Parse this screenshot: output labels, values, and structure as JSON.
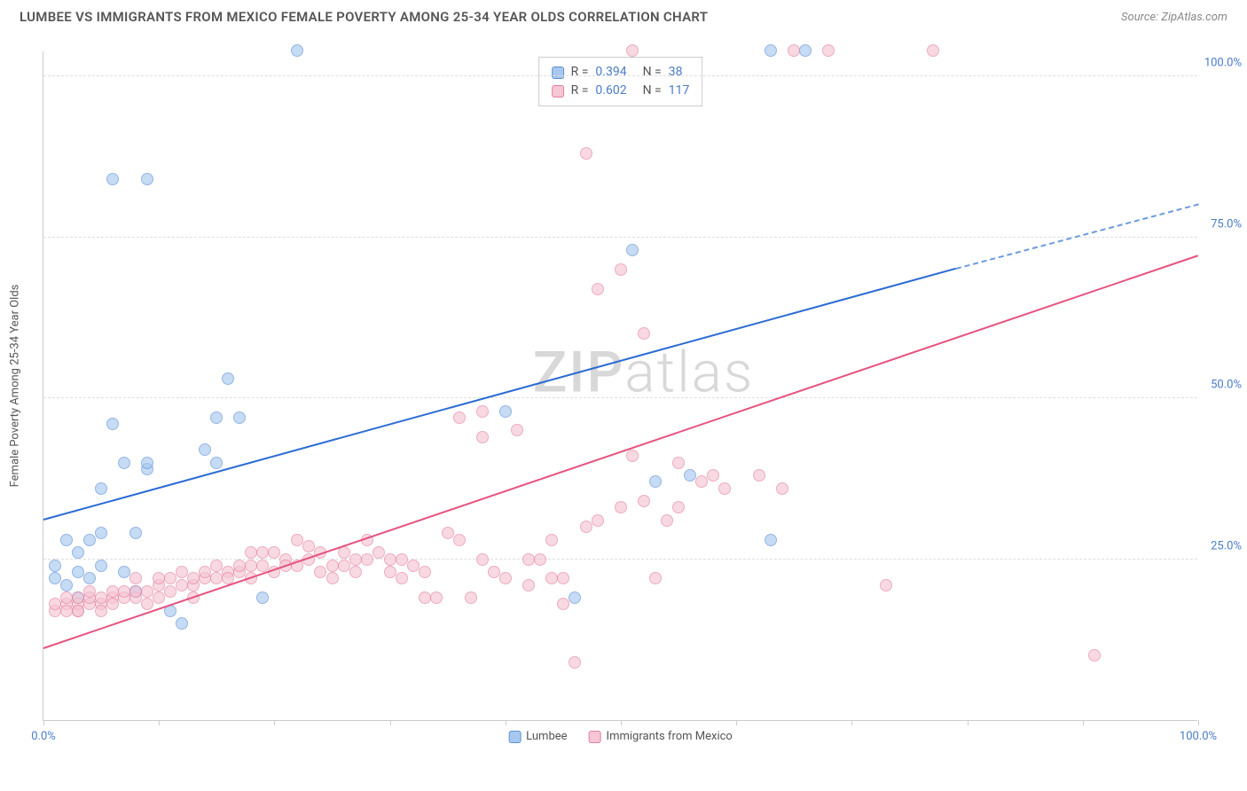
{
  "header": {
    "title": "LUMBEE VS IMMIGRANTS FROM MEXICO FEMALE POVERTY AMONG 25-34 YEAR OLDS CORRELATION CHART",
    "source": "Source: ZipAtlas.com"
  },
  "chart": {
    "type": "scatter",
    "y_label": "Female Poverty Among 25-34 Year Olds",
    "xlim": [
      0,
      100
    ],
    "ylim": [
      0,
      104
    ],
    "x_ticks": [
      0,
      10,
      20,
      30,
      40,
      50,
      60,
      70,
      80,
      90,
      100
    ],
    "x_tick_labels": {
      "0": "0.0%",
      "100": "100.0%"
    },
    "y_ticks": [
      25,
      50,
      75,
      100
    ],
    "y_tick_labels": {
      "25": "25.0%",
      "50": "50.0%",
      "75": "75.0%",
      "100": "100.0%"
    },
    "background_color": "#ffffff",
    "grid_color": "#dddddd",
    "axis_color": "#cccccc",
    "tick_label_color": "#4a7bc8",
    "marker_size": 14,
    "marker_opacity": 0.65,
    "watermark": "ZIPatlas",
    "series": [
      {
        "name": "Lumbee",
        "color_fill": "#a8c8ef",
        "color_stroke": "#5b8fd6",
        "trend_color": "#2b6cd4",
        "trend_solid": {
          "x1": 0,
          "y1": 31,
          "x2": 79,
          "y2": 70
        },
        "trend_dash": {
          "x1": 79,
          "y1": 70,
          "x2": 100,
          "y2": 80
        },
        "R": "0.394",
        "N": "38",
        "points": [
          [
            1,
            24
          ],
          [
            1,
            22
          ],
          [
            2,
            28
          ],
          [
            2,
            21
          ],
          [
            3,
            23
          ],
          [
            3,
            26
          ],
          [
            3,
            19
          ],
          [
            4,
            22
          ],
          [
            4,
            28
          ],
          [
            5,
            29
          ],
          [
            5,
            24
          ],
          [
            5,
            36
          ],
          [
            6,
            46
          ],
          [
            6,
            84
          ],
          [
            7,
            40
          ],
          [
            7,
            23
          ],
          [
            8,
            29
          ],
          [
            8,
            20
          ],
          [
            9,
            39
          ],
          [
            9,
            84
          ],
          [
            9,
            40
          ],
          [
            11,
            17
          ],
          [
            12,
            15
          ],
          [
            14,
            42
          ],
          [
            15,
            47
          ],
          [
            15,
            40
          ],
          [
            16,
            53
          ],
          [
            17,
            47
          ],
          [
            19,
            19
          ],
          [
            22,
            104
          ],
          [
            40,
            48
          ],
          [
            46,
            19
          ],
          [
            51,
            73
          ],
          [
            53,
            37
          ],
          [
            56,
            38
          ],
          [
            63,
            28
          ],
          [
            63,
            104
          ],
          [
            66,
            104
          ]
        ]
      },
      {
        "name": "Immigrants from Mexico",
        "color_fill": "#f5c6d3",
        "color_stroke": "#e37fa0",
        "trend_color": "#e6537e",
        "trend_solid": {
          "x1": 0,
          "y1": 11,
          "x2": 100,
          "y2": 72
        },
        "R": "0.602",
        "N": "117",
        "points": [
          [
            1,
            17
          ],
          [
            1,
            18
          ],
          [
            2,
            18
          ],
          [
            2,
            17
          ],
          [
            2,
            19
          ],
          [
            3,
            17
          ],
          [
            3,
            18
          ],
          [
            3,
            19
          ],
          [
            3,
            17
          ],
          [
            4,
            18
          ],
          [
            4,
            19
          ],
          [
            4,
            20
          ],
          [
            5,
            18
          ],
          [
            5,
            19
          ],
          [
            5,
            17
          ],
          [
            6,
            19
          ],
          [
            6,
            20
          ],
          [
            6,
            18
          ],
          [
            7,
            19
          ],
          [
            7,
            20
          ],
          [
            8,
            19
          ],
          [
            8,
            20
          ],
          [
            8,
            22
          ],
          [
            9,
            20
          ],
          [
            9,
            18
          ],
          [
            10,
            19
          ],
          [
            10,
            21
          ],
          [
            10,
            22
          ],
          [
            11,
            20
          ],
          [
            11,
            22
          ],
          [
            12,
            21
          ],
          [
            12,
            23
          ],
          [
            13,
            21
          ],
          [
            13,
            22
          ],
          [
            13,
            19
          ],
          [
            14,
            22
          ],
          [
            14,
            23
          ],
          [
            15,
            22
          ],
          [
            15,
            24
          ],
          [
            16,
            23
          ],
          [
            16,
            22
          ],
          [
            17,
            23
          ],
          [
            17,
            24
          ],
          [
            18,
            24
          ],
          [
            18,
            22
          ],
          [
            18,
            26
          ],
          [
            19,
            24
          ],
          [
            19,
            26
          ],
          [
            20,
            23
          ],
          [
            20,
            26
          ],
          [
            21,
            25
          ],
          [
            21,
            24
          ],
          [
            22,
            28
          ],
          [
            22,
            24
          ],
          [
            23,
            25
          ],
          [
            23,
            27
          ],
          [
            24,
            26
          ],
          [
            24,
            23
          ],
          [
            25,
            24
          ],
          [
            25,
            22
          ],
          [
            26,
            24
          ],
          [
            26,
            26
          ],
          [
            27,
            25
          ],
          [
            27,
            23
          ],
          [
            28,
            25
          ],
          [
            28,
            28
          ],
          [
            29,
            26
          ],
          [
            30,
            25
          ],
          [
            30,
            23
          ],
          [
            31,
            25
          ],
          [
            31,
            22
          ],
          [
            32,
            24
          ],
          [
            33,
            23
          ],
          [
            33,
            19
          ],
          [
            34,
            19
          ],
          [
            35,
            29
          ],
          [
            36,
            28
          ],
          [
            36,
            47
          ],
          [
            37,
            19
          ],
          [
            38,
            44
          ],
          [
            38,
            48
          ],
          [
            38,
            25
          ],
          [
            39,
            23
          ],
          [
            40,
            22
          ],
          [
            41,
            45
          ],
          [
            42,
            21
          ],
          [
            42,
            25
          ],
          [
            43,
            25
          ],
          [
            44,
            28
          ],
          [
            44,
            22
          ],
          [
            45,
            22
          ],
          [
            45,
            18
          ],
          [
            46,
            9
          ],
          [
            47,
            88
          ],
          [
            47,
            30
          ],
          [
            48,
            67
          ],
          [
            48,
            31
          ],
          [
            50,
            70
          ],
          [
            50,
            33
          ],
          [
            51,
            41
          ],
          [
            51,
            104
          ],
          [
            52,
            60
          ],
          [
            52,
            34
          ],
          [
            53,
            22
          ],
          [
            54,
            31
          ],
          [
            55,
            33
          ],
          [
            55,
            40
          ],
          [
            57,
            37
          ],
          [
            58,
            38
          ],
          [
            59,
            36
          ],
          [
            62,
            38
          ],
          [
            64,
            36
          ],
          [
            65,
            104
          ],
          [
            68,
            104
          ],
          [
            73,
            21
          ],
          [
            77,
            104
          ],
          [
            91,
            10
          ]
        ]
      }
    ],
    "legend_bottom": [
      {
        "swatch": "blue",
        "label": "Lumbee"
      },
      {
        "swatch": "pink",
        "label": "Immigrants from Mexico"
      }
    ]
  }
}
